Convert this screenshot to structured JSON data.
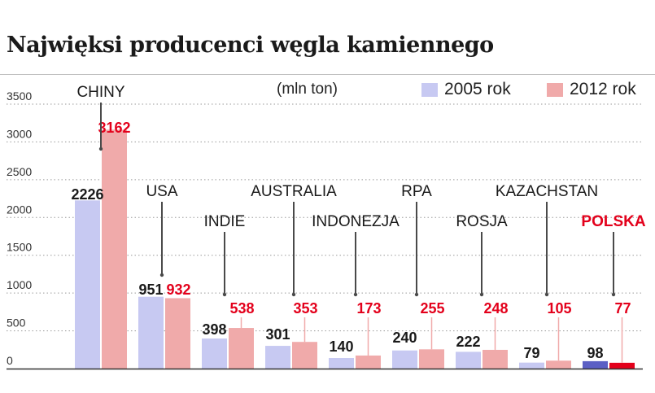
{
  "title": "Najwięksi producenci węgla kamiennego",
  "unit_label": "(mln ton)",
  "colors": {
    "series_2005": "#c7c9f2",
    "series_2012": "#f0aaaa",
    "label_2005": "#1a1a1a",
    "label_2012": "#e3001b",
    "poland_2005_bar": "#5b5fc4",
    "poland_2012_bar": "#e3001b",
    "leader_2012": "#f0aaaa"
  },
  "legend": [
    {
      "name": "2005 rok",
      "color": "#c7c9f2"
    },
    {
      "name": "2012 rok",
      "color": "#f0aaaa"
    }
  ],
  "chart_data": {
    "type": "bar",
    "title": "Najwięksi producenci węgla kamiennego",
    "ylabel": "(mln ton)",
    "ylim": [
      0,
      3500
    ],
    "yticks": [
      0,
      500,
      1000,
      1500,
      2000,
      2500,
      3000,
      3500
    ],
    "grid": "horizontal dotted",
    "legend_position": "top-right",
    "categories": [
      "CHINY",
      "USA",
      "INDIE",
      "AUSTRALIA",
      "INDONEZJA",
      "RPA",
      "ROSJA",
      "KAZACHSTAN",
      "POLSKA"
    ],
    "highlight_category": "POLSKA",
    "series": [
      {
        "name": "2005 rok",
        "values": [
          2226,
          951,
          398,
          301,
          140,
          240,
          222,
          79,
          98
        ]
      },
      {
        "name": "2012 rok",
        "values": [
          3162,
          932,
          538,
          353,
          173,
          255,
          248,
          105,
          77
        ]
      }
    ]
  }
}
